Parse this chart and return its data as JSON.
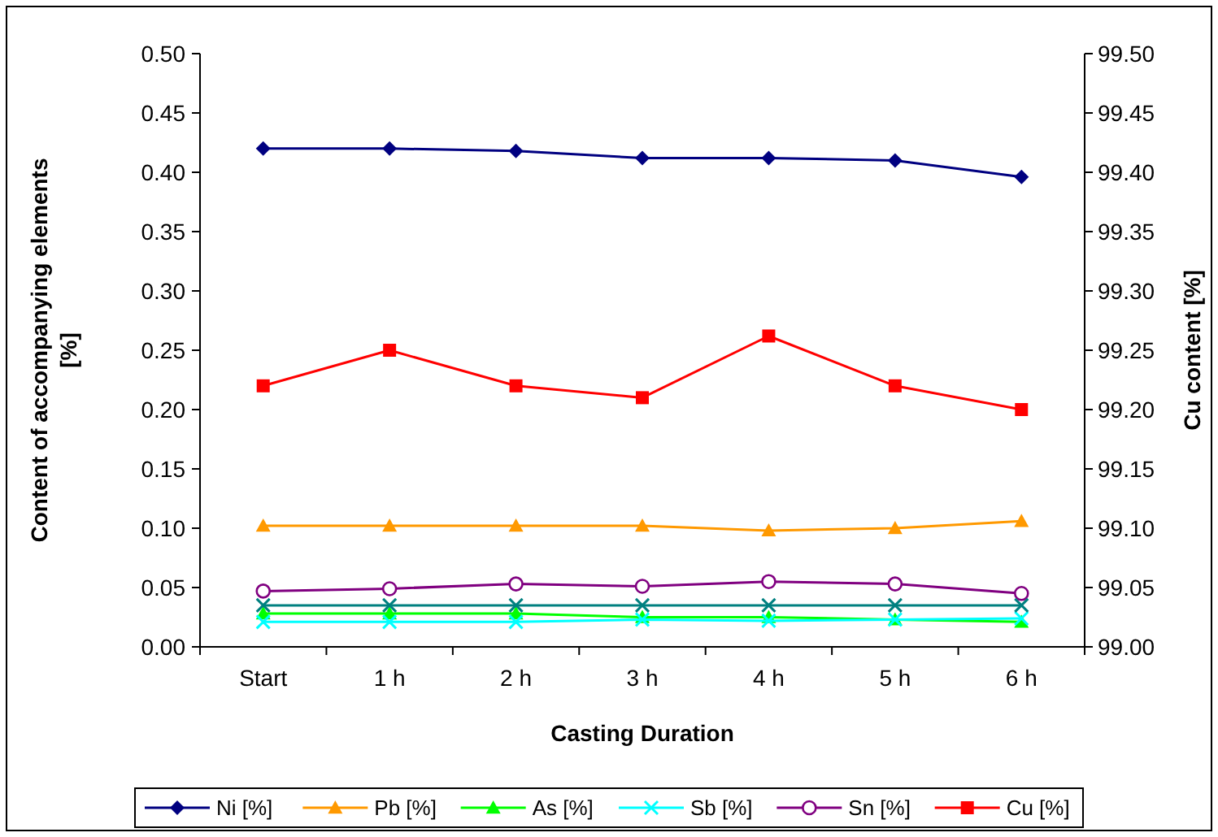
{
  "chart_data": {
    "type": "line",
    "xlabel": "Casting Duration",
    "ylabel": "Content of accompanying elements [%]",
    "y2label": "Cu content [%]",
    "categories": [
      "Start",
      "1 h",
      "2 h",
      "3 h",
      "4 h",
      "5 h",
      "6 h"
    ],
    "series": [
      {
        "name": "Ni [%]",
        "color": "#000080",
        "marker": "diamond",
        "values": [
          0.42,
          0.42,
          0.418,
          0.412,
          0.412,
          0.41,
          0.396
        ]
      },
      {
        "name": "Pb [%]",
        "color": "#ff9900",
        "marker": "triangle",
        "values": [
          0.102,
          0.102,
          0.102,
          0.102,
          0.098,
          0.1,
          0.106
        ]
      },
      {
        "name": "As [%]",
        "color": "#00ff00",
        "marker": "triangle",
        "values": [
          0.028,
          0.028,
          0.028,
          0.025,
          0.025,
          0.023,
          0.021
        ]
      },
      {
        "name": "Sb [%]",
        "color": "#00ffff",
        "marker": "cross",
        "values": [
          0.021,
          0.021,
          0.021,
          0.023,
          0.022,
          0.023,
          0.024
        ]
      },
      {
        "name": "Sn [%]",
        "color": "#800080",
        "marker": "circle",
        "values": [
          0.047,
          0.049,
          0.053,
          0.051,
          0.055,
          0.053,
          0.045
        ]
      },
      {
        "name": "Cu [%]",
        "color": "#ff0000",
        "marker": "square",
        "axis": "y2",
        "values": [
          99.22,
          99.25,
          99.22,
          99.21,
          99.262,
          99.22,
          99.2
        ]
      },
      {
        "color": "#008080",
        "marker": "cross",
        "values": [
          0.035,
          0.035,
          0.035,
          0.035,
          0.035,
          0.035,
          0.035
        ]
      }
    ],
    "ylim": [
      0,
      0.5
    ],
    "yticks": [
      {
        "value": 0,
        "label": "0.00"
      },
      {
        "value": 0.05,
        "label": "0.05"
      },
      {
        "value": 0.1,
        "label": "0.10"
      },
      {
        "value": 0.15,
        "label": "0.15"
      },
      {
        "value": 0.2,
        "label": "0.20"
      },
      {
        "value": 0.25,
        "label": "0.25"
      },
      {
        "value": 0.3,
        "label": "0.30"
      },
      {
        "value": 0.35,
        "label": "0.35"
      },
      {
        "value": 0.4,
        "label": "0.40"
      },
      {
        "value": 0.45,
        "label": "0.45"
      },
      {
        "value": 0.5,
        "label": "0.50"
      }
    ],
    "y2lim": [
      99,
      99.5
    ],
    "y2ticks": [
      {
        "value": 99,
        "label": "99.00"
      },
      {
        "value": 99.05,
        "label": "99.05"
      },
      {
        "value": 99.1,
        "label": "99.10"
      },
      {
        "value": 99.15,
        "label": "99.15"
      },
      {
        "value": 99.2,
        "label": "99.20"
      },
      {
        "value": 99.25,
        "label": "99.25"
      },
      {
        "value": 99.3,
        "label": "99.30"
      },
      {
        "value": 99.35,
        "label": "99.35"
      },
      {
        "value": 99.4,
        "label": "99.40"
      },
      {
        "value": 99.45,
        "label": "99.45"
      },
      {
        "value": 99.5,
        "label": "99.50"
      }
    ],
    "legend": "bottom",
    "grid": false,
    "line_style": "solid"
  }
}
